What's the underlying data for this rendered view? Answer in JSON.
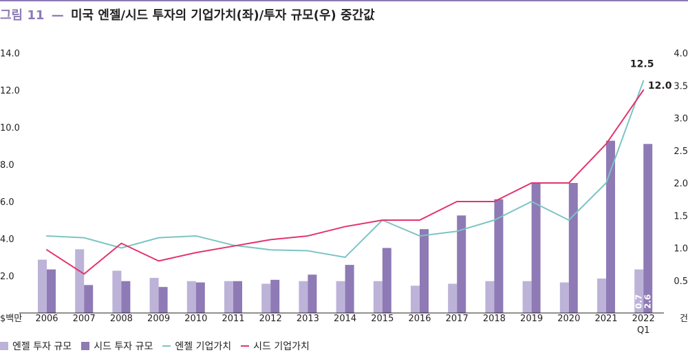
{
  "title": {
    "figure_number": "그림 11",
    "dash": "—",
    "text": "미국 엔젤/시드 투자의 기업가치(좌)/투자 규모(우) 중간값"
  },
  "colors": {
    "accent": "#8e7ab5",
    "angel_bar": "#bdb3d8",
    "seed_bar": "#8e7ab5",
    "angel_line": "#7cc4c4",
    "seed_line": "#e3336d"
  },
  "chart_data": {
    "type": "bar",
    "categories": [
      "2006",
      "2007",
      "2008",
      "2009",
      "2010",
      "2011",
      "2012",
      "2013",
      "2014",
      "2015",
      "2016",
      "2017",
      "2018",
      "2019",
      "2020",
      "2021",
      "2022"
    ],
    "category_sublabels": [
      "",
      "",
      "",
      "",
      "",
      "",
      "",
      "",
      "",
      "",
      "",
      "",
      "",
      "",
      "",
      "",
      "Q1"
    ],
    "left_axis": {
      "unit_label": "$백만",
      "ticks": [
        "14.0",
        "12.0",
        "10.0",
        "8.0",
        "6.0",
        "4.0",
        "2.0"
      ],
      "range": [
        0,
        14
      ]
    },
    "right_axis": {
      "unit_label": "건",
      "ticks": [
        "4.0",
        "3.5",
        "3.0",
        "2.5",
        "2.0",
        "1.5",
        "1.0",
        "0.5"
      ],
      "range": [
        0,
        4
      ]
    },
    "series": [
      {
        "name": "엔젤 투자 규모",
        "kind": "bar",
        "axis": "right",
        "values": [
          0.82,
          0.98,
          0.65,
          0.54,
          0.49,
          0.49,
          0.45,
          0.49,
          0.49,
          0.49,
          0.42,
          0.45,
          0.49,
          0.49,
          0.47,
          0.53,
          0.67
        ]
      },
      {
        "name": "시드 투자 규모",
        "kind": "bar",
        "axis": "right",
        "values": [
          0.67,
          0.43,
          0.49,
          0.4,
          0.47,
          0.49,
          0.51,
          0.59,
          0.74,
          1.0,
          1.29,
          1.5,
          1.75,
          2.0,
          2.0,
          2.65,
          2.6
        ]
      },
      {
        "name": "엔젤 기업가치",
        "kind": "line",
        "axis": "left",
        "values": [
          4.15,
          4.05,
          3.5,
          4.05,
          4.15,
          3.65,
          3.4,
          3.35,
          3.0,
          5.0,
          4.15,
          4.4,
          5.0,
          6.0,
          5.0,
          7.0,
          12.5
        ]
      },
      {
        "name": "시드 기업가치",
        "kind": "line",
        "axis": "left",
        "values": [
          3.4,
          2.1,
          3.75,
          2.8,
          3.25,
          3.6,
          3.95,
          4.15,
          4.65,
          5.0,
          5.0,
          6.0,
          6.0,
          7.0,
          7.0,
          9.1,
          12.0
        ]
      }
    ],
    "annotations": [
      {
        "series": "엔젤 기업가치",
        "category": "2022",
        "label": "12.5"
      },
      {
        "series": "시드 기업가치",
        "category": "2022",
        "label": "12.0"
      },
      {
        "series": "엔젤 투자 규모",
        "category": "2022",
        "label": "0.7"
      },
      {
        "series": "시드 투자 규모",
        "category": "2022",
        "label": "2.6"
      }
    ]
  },
  "legend": {
    "items": [
      {
        "label": "엔젤 투자 규모"
      },
      {
        "label": "시드 투자 규모"
      },
      {
        "label": "엔젤 기업가치"
      },
      {
        "label": "시드 기업가치"
      }
    ]
  }
}
